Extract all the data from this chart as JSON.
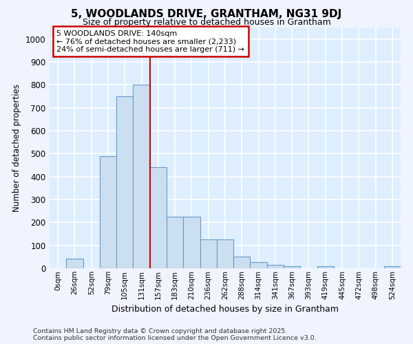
{
  "title": "5, WOODLANDS DRIVE, GRANTHAM, NG31 9DJ",
  "subtitle": "Size of property relative to detached houses in Grantham",
  "xlabel": "Distribution of detached houses by size in Grantham",
  "ylabel": "Number of detached properties",
  "bar_labels": [
    "0sqm",
    "26sqm",
    "52sqm",
    "79sqm",
    "105sqm",
    "131sqm",
    "157sqm",
    "183sqm",
    "210sqm",
    "236sqm",
    "262sqm",
    "288sqm",
    "314sqm",
    "341sqm",
    "367sqm",
    "393sqm",
    "419sqm",
    "445sqm",
    "472sqm",
    "498sqm",
    "524sqm"
  ],
  "bar_values": [
    0,
    42,
    0,
    490,
    750,
    800,
    440,
    225,
    225,
    125,
    125,
    50,
    28,
    15,
    10,
    0,
    10,
    0,
    0,
    0,
    8
  ],
  "bar_color": "#ccdff0",
  "bar_edge_color": "#6699cc",
  "plot_bg_color": "#ddeeff",
  "grid_color": "#ffffff",
  "fig_bg_color": "#f0f4ff",
  "annotation_line1": "5 WOODLANDS DRIVE: 140sqm",
  "annotation_line2": "← 76% of detached houses are smaller (2,233)",
  "annotation_line3": "24% of semi-detached houses are larger (711) →",
  "annotation_box_color": "#ffffff",
  "annotation_box_edge": "#cc0000",
  "ylim": [
    0,
    1050
  ],
  "yticks": [
    0,
    100,
    200,
    300,
    400,
    500,
    600,
    700,
    800,
    900,
    1000
  ],
  "footer_line1": "Contains HM Land Registry data © Crown copyright and database right 2025.",
  "footer_line2": "Contains public sector information licensed under the Open Government Licence v3.0."
}
